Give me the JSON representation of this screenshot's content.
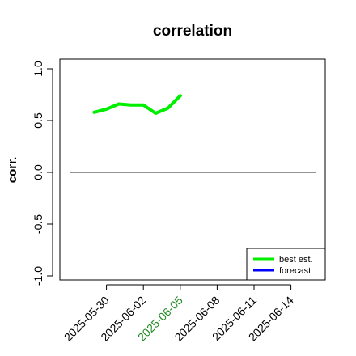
{
  "chart_data": {
    "type": "line",
    "title": "correlation",
    "xlabel": "",
    "ylabel": "corr.",
    "ylim": [
      -1.0,
      1.0
    ],
    "yticks": [
      "-1.0",
      "-0.5",
      "0.0",
      "0.5",
      "1.0"
    ],
    "ytick_values": [
      -1.0,
      -0.5,
      0.0,
      0.5,
      1.0
    ],
    "xlim": [
      "2025-05-27",
      "2025-06-16"
    ],
    "x_ticks": [
      {
        "label": "2025-05-30",
        "color": "#000000"
      },
      {
        "label": "2025-06-02",
        "color": "#000000"
      },
      {
        "label": "2025-06-05",
        "color": "#228B22"
      },
      {
        "label": "2025-06-08",
        "color": "#000000"
      },
      {
        "label": "2025-06-11",
        "color": "#000000"
      },
      {
        "label": "2025-06-14",
        "color": "#000000"
      }
    ],
    "reference_line": {
      "y": 0.0,
      "color": "#555555"
    },
    "series": [
      {
        "name": "best est.",
        "color": "#00ee00",
        "x": [
          "2025-05-29",
          "2025-05-30",
          "2025-05-31",
          "2025-06-01",
          "2025-06-02",
          "2025-06-03",
          "2025-06-04",
          "2025-06-05"
        ],
        "values": [
          0.58,
          0.61,
          0.66,
          0.65,
          0.65,
          0.57,
          0.62,
          0.74
        ]
      },
      {
        "name": "forecast",
        "color": "#0000ff",
        "x": [],
        "values": []
      }
    ],
    "legend": {
      "position": "bottom-right",
      "entries": [
        "best est.",
        "forecast"
      ]
    }
  }
}
